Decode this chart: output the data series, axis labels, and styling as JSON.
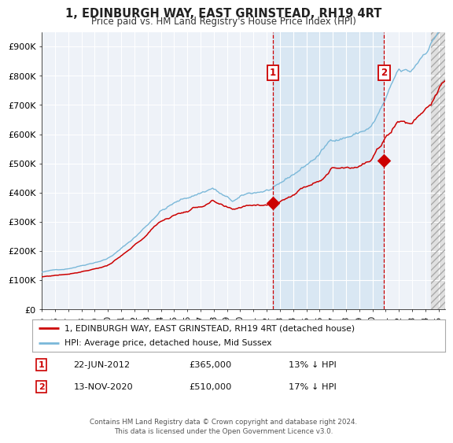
{
  "title": "1, EDINBURGH WAY, EAST GRINSTEAD, RH19 4RT",
  "subtitle": "Price paid vs. HM Land Registry's House Price Index (HPI)",
  "xlim": [
    1995.0,
    2025.5
  ],
  "ylim": [
    0,
    950000
  ],
  "yticks": [
    0,
    100000,
    200000,
    300000,
    400000,
    500000,
    600000,
    700000,
    800000,
    900000
  ],
  "ytick_labels": [
    "£0",
    "£100K",
    "£200K",
    "£300K",
    "£400K",
    "£500K",
    "£600K",
    "£700K",
    "£800K",
    "£900K"
  ],
  "xticks": [
    1995,
    1996,
    1997,
    1998,
    1999,
    2000,
    2001,
    2002,
    2003,
    2004,
    2005,
    2006,
    2007,
    2008,
    2009,
    2010,
    2011,
    2012,
    2013,
    2014,
    2015,
    2016,
    2017,
    2018,
    2019,
    2020,
    2021,
    2022,
    2023,
    2024,
    2025
  ],
  "hpi_color": "#7ab8d9",
  "price_color": "#cc0000",
  "vline_color": "#cc0000",
  "marker1_date": 2012.47,
  "marker1_price": 365000,
  "marker1_label": "22-JUN-2012",
  "marker1_value": "£365,000",
  "marker1_pct": "13% ↓ HPI",
  "marker2_date": 2020.87,
  "marker2_price": 510000,
  "marker2_label": "13-NOV-2020",
  "marker2_value": "£510,000",
  "marker2_pct": "17% ↓ HPI",
  "legend_line1": "1, EDINBURGH WAY, EAST GRINSTEAD, RH19 4RT (detached house)",
  "legend_line2": "HPI: Average price, detached house, Mid Sussex",
  "footnote": "Contains HM Land Registry data © Crown copyright and database right 2024.\nThis data is licensed under the Open Government Licence v3.0.",
  "background_color": "#ffffff",
  "plot_bg_color": "#eef2f8",
  "grid_color": "#ffffff",
  "hatch_start": 2024.42
}
